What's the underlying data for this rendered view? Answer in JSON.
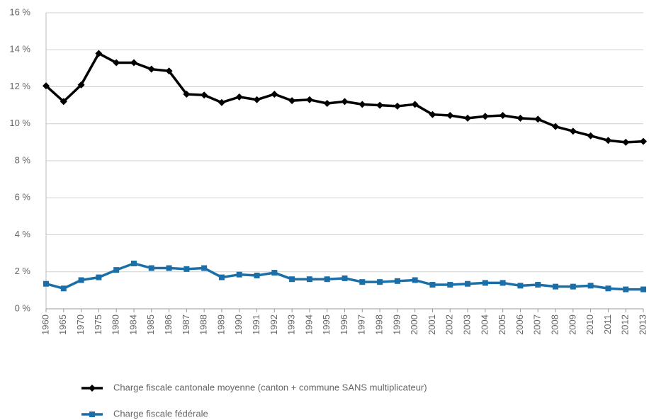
{
  "chart_data": {
    "type": "line",
    "categories": [
      "1960",
      "1965",
      "1970",
      "1975",
      "1980",
      "1984",
      "1985",
      "1986",
      "1987",
      "1988",
      "1989",
      "1990",
      "1991",
      "1992",
      "1993",
      "1994",
      "1995",
      "1996",
      "1997",
      "1998",
      "1999",
      "2000",
      "2001",
      "2002",
      "2003",
      "2004",
      "2005",
      "2006",
      "2007",
      "2008",
      "2009",
      "2010",
      "2011",
      "2012",
      "2013"
    ],
    "series": [
      {
        "name": "Charge fiscale cantonale moyenne (canton + commune SANS multiplicateur)",
        "color": "#000000",
        "marker": "diamond",
        "values": [
          12.05,
          11.2,
          12.1,
          13.8,
          13.3,
          13.3,
          12.95,
          12.85,
          11.6,
          11.55,
          11.15,
          11.45,
          11.3,
          11.6,
          11.25,
          11.3,
          11.1,
          11.2,
          11.05,
          11.0,
          10.95,
          11.05,
          10.5,
          10.45,
          10.3,
          10.4,
          10.45,
          10.3,
          10.25,
          9.85,
          9.6,
          9.35,
          9.1,
          9.0,
          9.05
        ]
      },
      {
        "name": "Charge fiscale fédérale",
        "color": "#1b6fa8",
        "marker": "square",
        "values": [
          1.35,
          1.1,
          1.55,
          1.7,
          2.1,
          2.45,
          2.2,
          2.2,
          2.15,
          2.2,
          1.7,
          1.85,
          1.8,
          1.95,
          1.6,
          1.6,
          1.6,
          1.65,
          1.45,
          1.45,
          1.5,
          1.55,
          1.3,
          1.3,
          1.35,
          1.4,
          1.4,
          1.25,
          1.3,
          1.2,
          1.2,
          1.25,
          1.1,
          1.05,
          1.05
        ]
      }
    ],
    "ylim": [
      0,
      16
    ],
    "yticks": [
      {
        "value": 0,
        "label": "0 %"
      },
      {
        "value": 2,
        "label": "2 %"
      },
      {
        "value": 4,
        "label": "4 %"
      },
      {
        "value": 6,
        "label": "6 %"
      },
      {
        "value": 8,
        "label": "8 %"
      },
      {
        "value": 10,
        "label": "10 %"
      },
      {
        "value": 12,
        "label": "12 %"
      },
      {
        "value": 14,
        "label": "14 %"
      },
      {
        "value": 16,
        "label": "16 %"
      }
    ],
    "grid": true
  }
}
